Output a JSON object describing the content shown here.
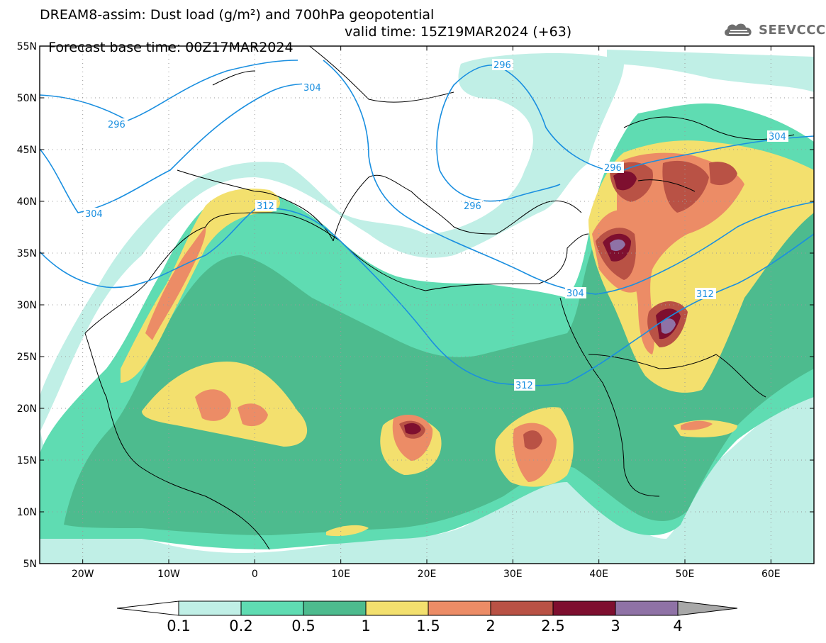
{
  "header": {
    "line1": "DREAM8-assim: Dust load (g/m²) and 700hPa geopotential",
    "line2_left": "Forecast base time: 00Z17MAR2024",
    "line2_right": "valid time: 15Z19MAR2024 (+63)"
  },
  "logo": {
    "text": "SEEVCCC",
    "icon": "cloud-icon"
  },
  "map": {
    "lat_labels": [
      "55N",
      "50N",
      "45N",
      "40N",
      "35N",
      "30N",
      "25N",
      "20N",
      "15N",
      "10N",
      "5N"
    ],
    "lon_labels": [
      "20W",
      "10W",
      "0",
      "10E",
      "20E",
      "30E",
      "40E",
      "50E",
      "60E"
    ],
    "lat_range": [
      5,
      55
    ],
    "lon_range": [
      -25,
      65
    ],
    "grid": true,
    "contour_labels": [
      "296",
      "304",
      "296",
      "304",
      "312",
      "296",
      "296",
      "304",
      "312",
      "312",
      "304"
    ]
  },
  "colorbar": {
    "labels": [
      "0.1",
      "0.2",
      "0.5",
      "1",
      "1.5",
      "2",
      "2.5",
      "3",
      "4"
    ],
    "colors": [
      "#ffffff",
      "#c0efe6",
      "#5fdcb2",
      "#4dbb8e",
      "#f3e06e",
      "#ec8c66",
      "#b95245",
      "#7e0f2f",
      "#8f72a6",
      "#a8a8a8"
    ]
  },
  "fills": {
    "c01": "#c0efe6",
    "c02": "#5fdcb2",
    "c05": "#4dbb8e",
    "c10": "#f3e06e",
    "c15": "#ec8c66",
    "c20": "#b95245",
    "c25": "#7e0f2f",
    "c30": "#8f72a6",
    "contour": "#1a8fe0"
  }
}
